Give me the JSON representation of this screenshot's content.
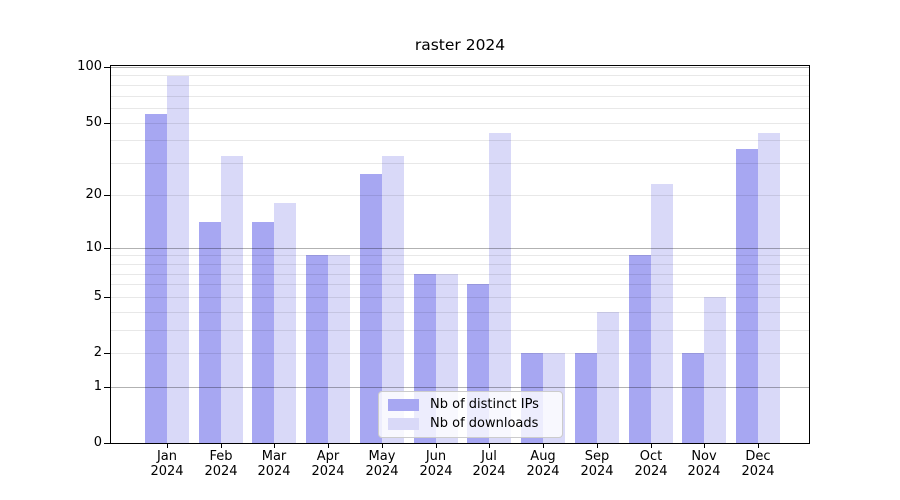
{
  "chart_data": {
    "type": "bar",
    "title": "raster 2024",
    "categories": [
      "Jan",
      "Feb",
      "Mar",
      "Apr",
      "May",
      "Jun",
      "Jul",
      "Aug",
      "Sep",
      "Oct",
      "Nov",
      "Dec"
    ],
    "category_year": "2024",
    "series": [
      {
        "name": "Nb of distinct IPs",
        "color": "#a7a7f2",
        "values": [
          56,
          14,
          14,
          9,
          26,
          7,
          6,
          2,
          2,
          9,
          2,
          36
        ]
      },
      {
        "name": "Nb of downloads",
        "color": "#d9d9f8",
        "values": [
          89,
          33,
          18,
          9,
          33,
          7,
          44,
          2,
          4,
          23,
          5,
          44
        ]
      }
    ],
    "yscale": "log1p",
    "ylim": [
      0,
      104
    ],
    "yticks": [
      0,
      1,
      2,
      5,
      10,
      20,
      50,
      100
    ],
    "major_gridline_values": [
      1,
      10,
      100
    ],
    "minor_gridline_values": [
      2,
      3,
      4,
      5,
      6,
      7,
      8,
      9,
      20,
      30,
      40,
      50,
      60,
      70,
      80,
      90
    ],
    "grid": true,
    "legend_position": "lower center"
  },
  "colors": {
    "background": "#ffffff",
    "spine": "#000000",
    "major_grid": "rgba(0,0,0,0.30)",
    "minor_grid": "rgba(0,0,0,0.09)",
    "legend_background": "rgba(255,255,255,0.8)",
    "legend_border": "#cccccc",
    "text": "#000000"
  }
}
